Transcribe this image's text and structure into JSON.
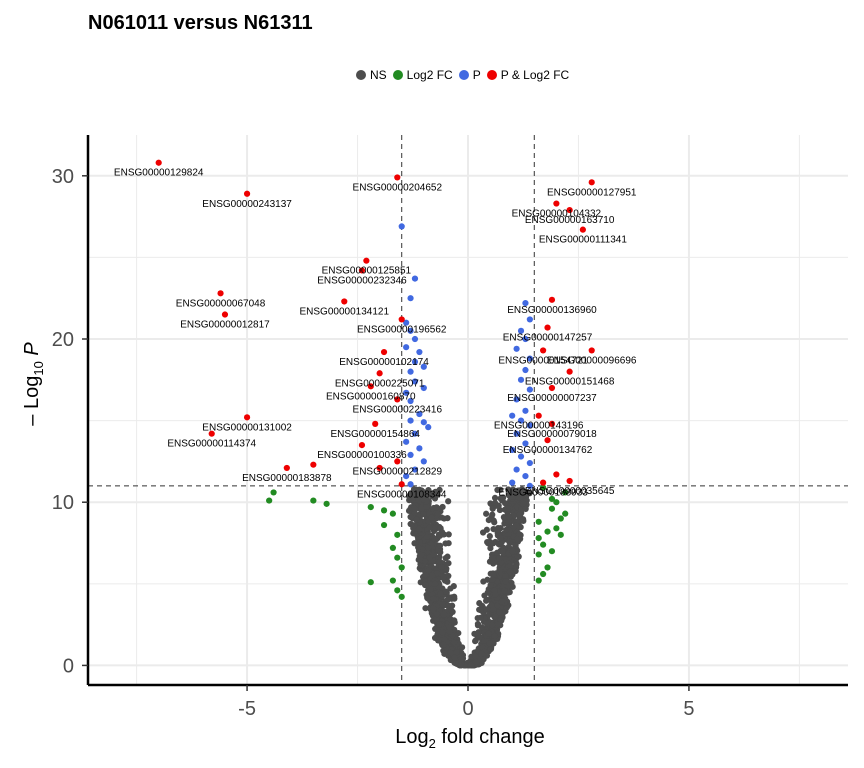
{
  "chart_data": {
    "type": "scatter",
    "title": "N061011 versus N61311",
    "xlabel_main": "Log",
    "xlabel_sub": "2",
    "xlabel_rest": " fold change",
    "ylabel_pre": "– Log",
    "ylabel_sub": "10",
    "ylabel_post": " P",
    "xlim": [
      -8.6,
      8.6
    ],
    "ylim": [
      -1.2,
      32.5
    ],
    "xticks": [
      -5,
      0,
      5
    ],
    "yticks": [
      0,
      10,
      20,
      30
    ],
    "fc_cutoff": 1.5,
    "p_cutoff": 11.0,
    "grid": true,
    "legend_position": "top",
    "legend": [
      {
        "key": "NS",
        "label": "NS",
        "color": "#4d4d4d"
      },
      {
        "key": "FC",
        "label": "Log2 FC",
        "color": "#228b22"
      },
      {
        "key": "P",
        "label": "P",
        "color": "#4169e1"
      },
      {
        "key": "PFC",
        "label": "P & Log2 FC",
        "color": "#ee0000"
      }
    ],
    "labeled_points": [
      {
        "x": -7.0,
        "y": 30.8,
        "label": "ENSG00000129824"
      },
      {
        "x": -5.0,
        "y": 28.9,
        "label": "ENSG00000243137"
      },
      {
        "x": -1.6,
        "y": 29.9,
        "label": "ENSG00000204652"
      },
      {
        "x": 2.8,
        "y": 29.6,
        "label": "ENSG00000127951"
      },
      {
        "x": 2.0,
        "y": 28.3,
        "label": "ENSG00000104332"
      },
      {
        "x": 2.3,
        "y": 27.9,
        "label": "ENSG00000163710"
      },
      {
        "x": 2.6,
        "y": 26.7,
        "label": "ENSG00000111341"
      },
      {
        "x": -2.3,
        "y": 24.8,
        "label": "ENSG00000125851"
      },
      {
        "x": -2.4,
        "y": 24.2,
        "label": "ENSG00000232346"
      },
      {
        "x": -5.6,
        "y": 22.8,
        "label": "ENSG00000067048"
      },
      {
        "x": -2.8,
        "y": 22.3,
        "label": "ENSG00000134121"
      },
      {
        "x": -5.5,
        "y": 21.5,
        "label": "ENSG00000012817"
      },
      {
        "x": 1.9,
        "y": 22.4,
        "label": "ENSG00000136960"
      },
      {
        "x": -1.5,
        "y": 21.2,
        "label": "ENSG00000196562"
      },
      {
        "x": 1.8,
        "y": 20.7,
        "label": "ENSG00000147257"
      },
      {
        "x": 2.8,
        "y": 19.3,
        "label": "ENSG00000096696"
      },
      {
        "x": -1.9,
        "y": 19.2,
        "label": "ENSG00000102174"
      },
      {
        "x": 1.7,
        "y": 19.3,
        "label": "ENSG00000154721"
      },
      {
        "x": -2.0,
        "y": 17.9,
        "label": "ENSG00000225071"
      },
      {
        "x": 2.3,
        "y": 18.0,
        "label": "ENSG00000151468"
      },
      {
        "x": -2.2,
        "y": 17.1,
        "label": "ENSG00000160870"
      },
      {
        "x": 1.9,
        "y": 17.0,
        "label": "ENSG00000007237"
      },
      {
        "x": -1.6,
        "y": 16.3,
        "label": "ENSG00000223416"
      },
      {
        "x": 1.6,
        "y": 15.3,
        "label": "ENSG00000143196"
      },
      {
        "x": 1.9,
        "y": 14.8,
        "label": "ENSG00000079018"
      },
      {
        "x": -5.0,
        "y": 15.2,
        "label": "ENSG00000131002"
      },
      {
        "x": -2.1,
        "y": 14.8,
        "label": "ENSG00000154864"
      },
      {
        "x": -5.8,
        "y": 14.2,
        "label": "ENSG00000114374"
      },
      {
        "x": 1.8,
        "y": 13.8,
        "label": "ENSG00000134762"
      },
      {
        "x": -2.4,
        "y": 13.5,
        "label": "ENSG00000100336"
      },
      {
        "x": -1.6,
        "y": 12.5,
        "label": "ENSG00000212829"
      },
      {
        "x": -3.5,
        "y": 12.3,
        "label": ""
      },
      {
        "x": -4.1,
        "y": 12.1,
        "label": "ENSG00000183878"
      },
      {
        "x": -2.0,
        "y": 12.1,
        "label": ""
      },
      {
        "x": 2.0,
        "y": 11.7,
        "label": ""
      },
      {
        "x": 2.3,
        "y": 11.3,
        "label": "ENSG00000035645"
      },
      {
        "x": 1.7,
        "y": 11.2,
        "label": "ENSG00000188933"
      },
      {
        "x": -1.5,
        "y": 11.1,
        "label": "ENSG00000108344"
      }
    ],
    "p_points": [
      [
        -1.5,
        26.9
      ],
      [
        -1.2,
        23.7
      ],
      [
        -1.3,
        22.5
      ],
      [
        -1.4,
        21.0
      ],
      [
        -1.3,
        20.5
      ],
      [
        -1.2,
        20.0
      ],
      [
        -1.4,
        19.5
      ],
      [
        -1.1,
        19.2
      ],
      [
        -1.2,
        18.6
      ],
      [
        -1.0,
        18.3
      ],
      [
        -1.3,
        18.0
      ],
      [
        -1.2,
        17.4
      ],
      [
        -1.0,
        17.0
      ],
      [
        -1.4,
        16.7
      ],
      [
        -1.3,
        16.2
      ],
      [
        -1.1,
        15.4
      ],
      [
        -1.3,
        15.0
      ],
      [
        -1.0,
        14.9
      ],
      [
        -0.9,
        14.6
      ],
      [
        -1.2,
        14.2
      ],
      [
        -1.4,
        13.7
      ],
      [
        -1.1,
        13.3
      ],
      [
        -1.3,
        12.9
      ],
      [
        -1.0,
        12.5
      ],
      [
        -1.2,
        12.0
      ],
      [
        -1.4,
        11.6
      ],
      [
        -1.3,
        11.1
      ],
      [
        1.3,
        22.2
      ],
      [
        1.4,
        21.2
      ],
      [
        1.2,
        20.5
      ],
      [
        1.3,
        20.0
      ],
      [
        1.1,
        19.4
      ],
      [
        1.4,
        18.8
      ],
      [
        1.3,
        18.1
      ],
      [
        1.2,
        17.5
      ],
      [
        1.4,
        16.9
      ],
      [
        1.1,
        16.3
      ],
      [
        1.3,
        15.6
      ],
      [
        1.0,
        15.3
      ],
      [
        1.2,
        15.0
      ],
      [
        1.4,
        14.7
      ],
      [
        1.1,
        14.2
      ],
      [
        1.3,
        13.6
      ],
      [
        1.0,
        13.2
      ],
      [
        1.2,
        12.8
      ],
      [
        1.4,
        12.4
      ],
      [
        1.1,
        12.0
      ],
      [
        1.3,
        11.6
      ],
      [
        1.0,
        11.2
      ],
      [
        1.4,
        11.0
      ]
    ],
    "fc_points": [
      [
        -4.4,
        10.6
      ],
      [
        -4.5,
        10.1
      ],
      [
        -3.5,
        10.1
      ],
      [
        -3.2,
        9.9
      ],
      [
        -2.2,
        9.7
      ],
      [
        -1.9,
        9.5
      ],
      [
        -1.7,
        9.3
      ],
      [
        -1.9,
        8.6
      ],
      [
        -1.6,
        8.0
      ],
      [
        -1.7,
        7.2
      ],
      [
        -1.6,
        6.6
      ],
      [
        -1.5,
        6.0
      ],
      [
        -1.7,
        5.2
      ],
      [
        -1.6,
        4.6
      ],
      [
        -2.2,
        5.1
      ],
      [
        -1.5,
        4.2
      ],
      [
        1.7,
        10.9
      ],
      [
        2.2,
        10.6
      ],
      [
        1.9,
        10.2
      ],
      [
        2.2,
        9.3
      ],
      [
        2.0,
        8.4
      ],
      [
        1.6,
        8.8
      ],
      [
        1.8,
        8.2
      ],
      [
        2.1,
        8.0
      ],
      [
        1.7,
        7.4
      ],
      [
        1.6,
        6.8
      ],
      [
        1.8,
        6.0
      ],
      [
        1.7,
        5.6
      ],
      [
        1.6,
        5.2
      ],
      [
        1.9,
        9.6
      ],
      [
        2.0,
        10.0
      ],
      [
        2.1,
        9.0
      ],
      [
        1.6,
        7.8
      ],
      [
        1.9,
        7.0
      ]
    ]
  }
}
